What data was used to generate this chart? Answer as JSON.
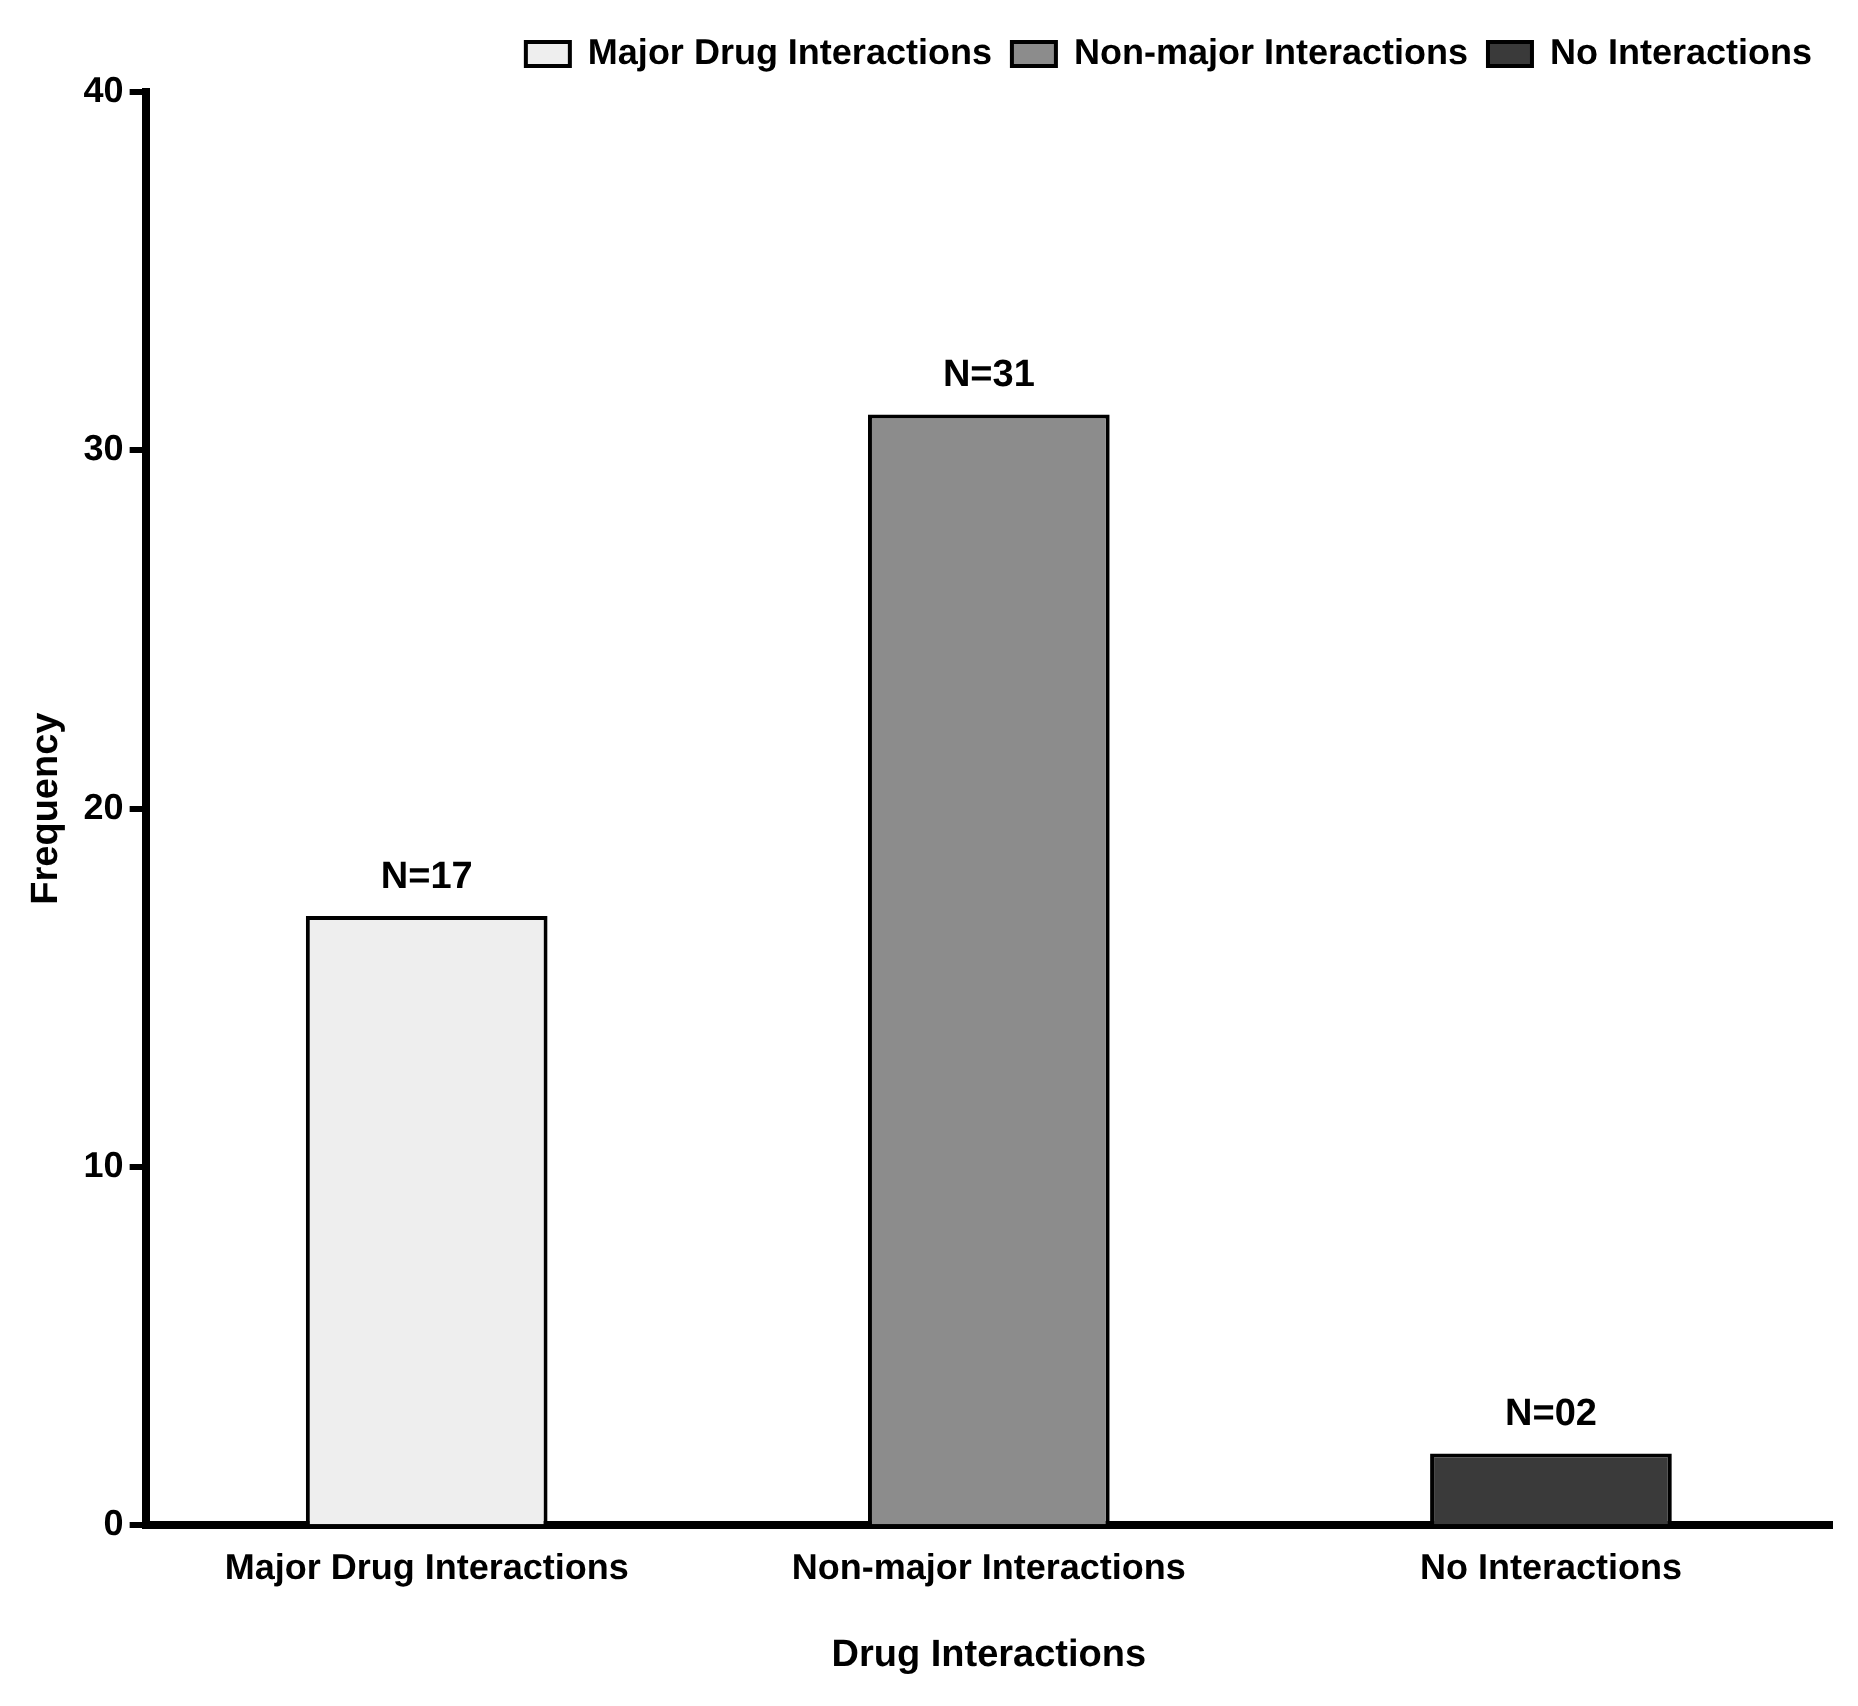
{
  "chart_data": {
    "type": "bar",
    "xlabel": "Drug Interactions",
    "ylabel": "Frequency",
    "categories": [
      "Major Drug Interactions",
      "Non-major Interactions",
      "No Interactions"
    ],
    "series": [
      {
        "name": "Major Drug Interactions",
        "color": "#eeeeee",
        "values": [
          17,
          null,
          null
        ],
        "value_labels": [
          "N=17",
          null,
          null
        ]
      },
      {
        "name": "Non-major Interactions",
        "color": "#8c8c8c",
        "values": [
          null,
          31,
          null
        ],
        "value_labels": [
          null,
          "N=31",
          null
        ]
      },
      {
        "name": "No Interactions",
        "color": "#3a3a3a",
        "values": [
          null,
          null,
          2
        ],
        "value_labels": [
          null,
          null,
          "N=02"
        ]
      }
    ],
    "ylim": [
      0,
      40
    ],
    "yticks": [
      0,
      10,
      20,
      30,
      40
    ],
    "grid": false,
    "legend": "top right"
  }
}
